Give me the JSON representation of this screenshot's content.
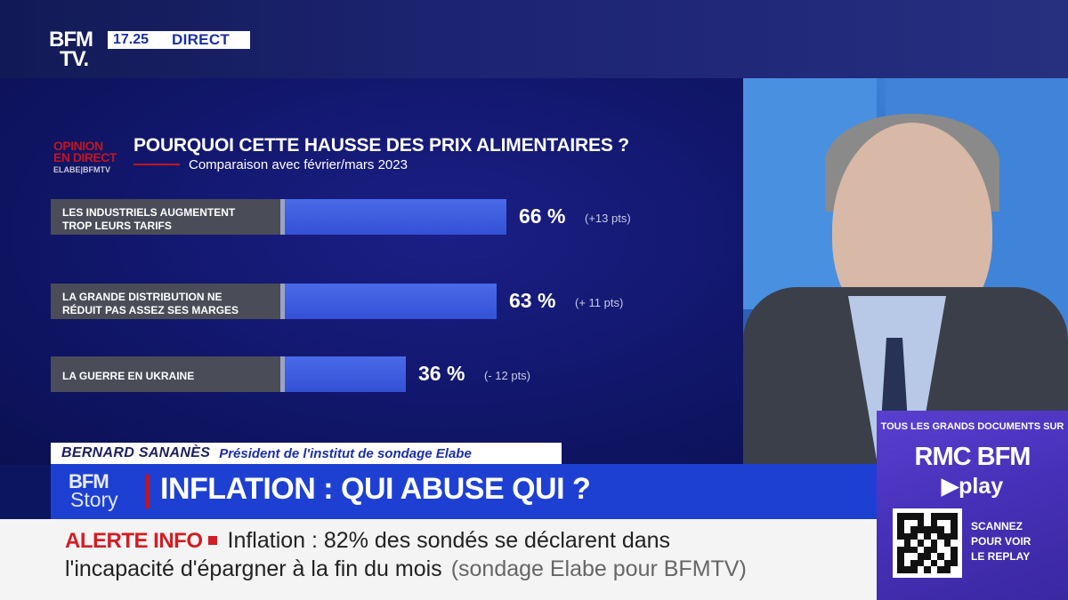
{
  "channel": {
    "logo_line1": "BFM",
    "logo_line2": "TV.",
    "time": "17.25",
    "live_label": "DIRECT"
  },
  "poll_logo": {
    "line1": "OPINION",
    "line2": "EN DIRECT",
    "line3": "ELABE|BFMTV"
  },
  "chart_data": {
    "type": "bar",
    "orientation": "horizontal",
    "title": "POURQUOI CETTE HAUSSE DES PRIX ALIMENTAIRES ?",
    "subtitle": "Comparaison avec février/mars 2023",
    "categories": [
      [
        "LES INDUSTRIELS AUGMENTENT",
        "TROP LEURS TARIFS"
      ],
      [
        "LA GRANDE DISTRIBUTION NE",
        "RÉDUIT PAS ASSEZ SES MARGES"
      ],
      [
        "LA GUERRE EN UKRAINE"
      ]
    ],
    "values": [
      66,
      63,
      36
    ],
    "value_labels": [
      "66 %",
      "63 %",
      "36 %"
    ],
    "deltas": [
      "(+13 pts)",
      "(+ 11 pts)",
      "(- 12 pts)"
    ],
    "unit": "%",
    "xlim": [
      0,
      100
    ],
    "bar_color": "#3a56da",
    "label_bg": "#4a4d57"
  },
  "lower_third": {
    "name": "BERNARD SANANÈS",
    "role": "Président de l'institut de sondage Elabe"
  },
  "story": {
    "logo_line1": "BFM",
    "logo_line2": "Story",
    "title": "INFLATION : QUI ABUSE QUI ?"
  },
  "ticker": {
    "alert_label": "ALERTE INFO",
    "line1": "Inflation : 82% des sondés se déclarent dans",
    "line2": "l'incapacité d'épargner à la fin du mois",
    "source": "(sondage Elabe pour BFMTV)"
  },
  "promo": {
    "top": "TOUS LES GRANDS DOCUMENTS SUR",
    "brand": "RMC BFM",
    "play": "▶play",
    "scan_line1": "SCANNEZ",
    "scan_line2": "POUR VOIR",
    "scan_line3": "LE REPLAY"
  },
  "colors": {
    "accent_red": "#c4141f",
    "story_blue": "#1e40d2",
    "alert_red": "#d41c23",
    "promo_purple": "#4a32c0"
  }
}
